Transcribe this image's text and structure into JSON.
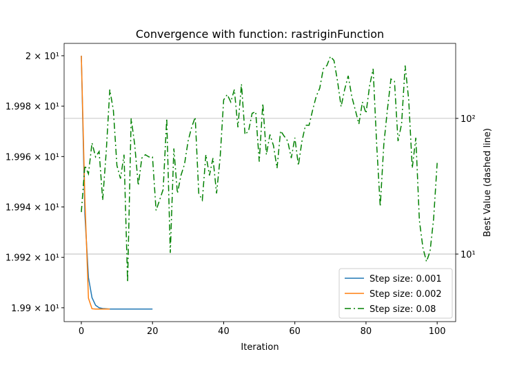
{
  "chart_data": {
    "type": "line",
    "title": "Convergence with function: rastriginFunction",
    "x_label": "Iteration",
    "y2_label": "Best Value (dashed line)",
    "xlim": [
      -4.84,
      105.2
    ],
    "xticks": [
      0,
      20,
      40,
      60,
      80,
      100
    ],
    "ylim": [
      19.8945,
      20.0049
    ],
    "yticks": [
      {
        "value": 19.9,
        "label": "1.99 × 10¹"
      },
      {
        "value": 19.92,
        "label": "1.992 × 10¹"
      },
      {
        "value": 19.94,
        "label": "1.994 × 10¹"
      },
      {
        "value": 19.96,
        "label": "1.996 × 10¹"
      },
      {
        "value": 19.98,
        "label": "1.998 × 10¹"
      },
      {
        "value": 20,
        "label": "2 × 10¹"
      }
    ],
    "y2lim": [
      3.18,
      357
    ],
    "y2ticks": [
      {
        "value": 10,
        "label": "10¹"
      },
      {
        "value": 100,
        "label": "10²"
      }
    ],
    "y2log": true,
    "grid": "y2",
    "legend": "lower right",
    "series": [
      {
        "name": "Step size: 0.001",
        "color": "#1f77b4",
        "style": "solid",
        "x": [
          0,
          1,
          2,
          3,
          4,
          5,
          6,
          7,
          8,
          9,
          10,
          11,
          12,
          13,
          14,
          15,
          16,
          17,
          18,
          19,
          20
        ],
        "values": [
          20.0,
          19.937,
          19.912,
          19.904,
          19.901,
          19.9,
          19.8997,
          19.8996,
          19.8995,
          19.8995,
          19.8995,
          19.8995,
          19.8995,
          19.8995,
          19.8995,
          19.8995,
          19.8995,
          19.8995,
          19.8995,
          19.8995,
          19.8995
        ]
      },
      {
        "name": "Step size: 0.002",
        "color": "#ff7f0e",
        "style": "solid",
        "x": [
          0,
          1,
          2,
          3,
          4,
          5,
          6,
          7,
          8
        ],
        "values": [
          20.0,
          19.943,
          19.9038,
          19.8996,
          19.8995,
          19.8995,
          19.8995,
          19.8995,
          19.8995
        ]
      },
      {
        "name": "Step size: 0.08",
        "color": "#008000",
        "style": "dashdot",
        "axis": "y2",
        "x": [
          0,
          1,
          2,
          3,
          4,
          5,
          6,
          7,
          8,
          9,
          10,
          11,
          12,
          13,
          14,
          15,
          16,
          17,
          18,
          19,
          20,
          21,
          22,
          23,
          24,
          25,
          26,
          27,
          28,
          29,
          30,
          31,
          32,
          33,
          34,
          35,
          36,
          37,
          38,
          39,
          40,
          41,
          42,
          43,
          44,
          45,
          46,
          47,
          48,
          49,
          50,
          51,
          52,
          53,
          54,
          55,
          56,
          57,
          58,
          59,
          60,
          61,
          62,
          63,
          64,
          65,
          66,
          67,
          68,
          69,
          70,
          71,
          72,
          73,
          74,
          75,
          76,
          77,
          78,
          79,
          80,
          81,
          82,
          83,
          84,
          85,
          86,
          87,
          88,
          89,
          90,
          91,
          92,
          93,
          94,
          95,
          96,
          97,
          98,
          99,
          100
        ],
        "values": [
          20.4,
          45,
          39,
          66,
          52,
          57,
          25,
          57,
          163,
          115,
          45,
          36,
          54,
          6.2,
          100,
          64,
          32,
          51,
          54,
          52,
          52,
          21,
          25,
          30,
          100,
          10.2,
          60,
          28,
          38,
          46,
          68,
          86,
          102,
          28,
          25,
          54,
          38,
          51,
          28,
          51,
          137,
          150,
          132,
          163,
          86,
          179,
          76,
          81,
          109,
          112,
          48,
          129,
          54,
          76,
          63,
          43,
          81,
          74,
          68,
          51,
          72,
          45,
          68,
          89,
          89,
          115,
          145,
          167,
          232,
          245,
          286,
          267,
          188,
          122,
          163,
          206,
          145,
          115,
          91,
          132,
          109,
          173,
          232,
          64,
          22.4,
          64,
          115,
          195,
          188,
          68,
          91,
          245,
          137,
          43,
          72,
          17.7,
          11.1,
          8.8,
          10.5,
          18.2,
          47
        ]
      }
    ]
  }
}
